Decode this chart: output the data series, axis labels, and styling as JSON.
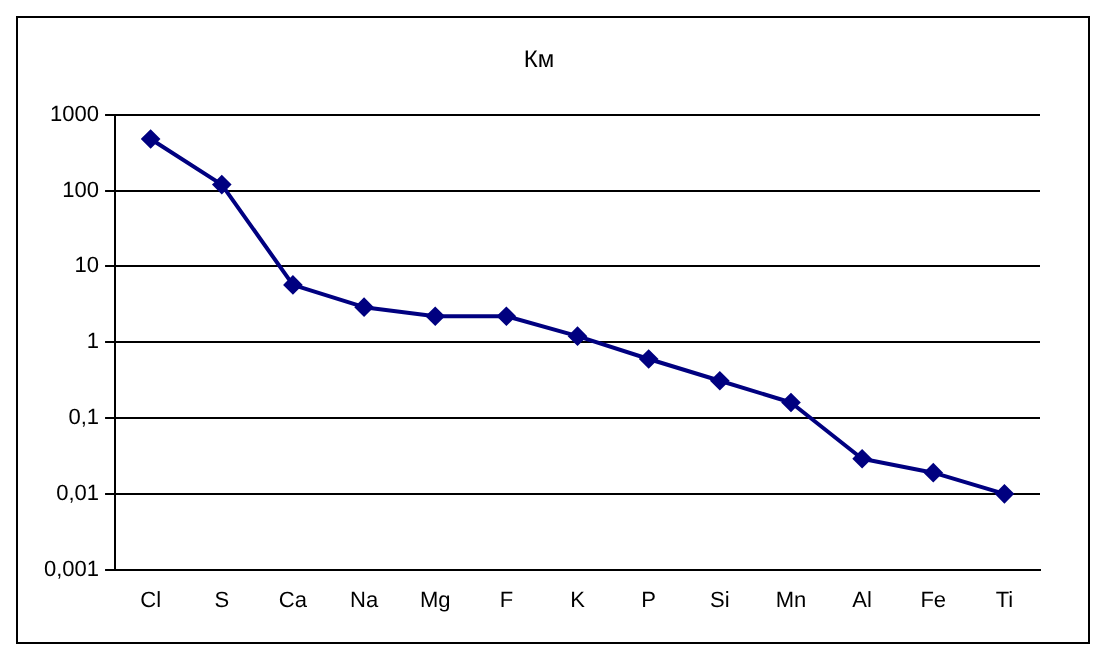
{
  "chart_data": {
    "type": "line",
    "title": "Км",
    "categories": [
      "Cl",
      "S",
      "Ca",
      "Na",
      "Mg",
      "F",
      "K",
      "P",
      "Si",
      "Mn",
      "Al",
      "Fe",
      "Ti"
    ],
    "series": [
      {
        "color": "#000080",
        "values": [
          480,
          120,
          5.7,
          2.9,
          2.2,
          2.2,
          1.2,
          0.6,
          0.31,
          0.16,
          0.029,
          0.019,
          0.01
        ]
      }
    ],
    "log": true,
    "ylim": [
      0.001,
      1000
    ],
    "yticks": [
      {
        "value": 0.001,
        "label": "0,001"
      },
      {
        "value": 0.01,
        "label": "0,01"
      },
      {
        "value": 0.1,
        "label": "0,1"
      },
      1,
      10,
      100,
      1000
    ],
    "grid": "y",
    "legend": false,
    "marker": "diamond",
    "line_style": "solid"
  }
}
